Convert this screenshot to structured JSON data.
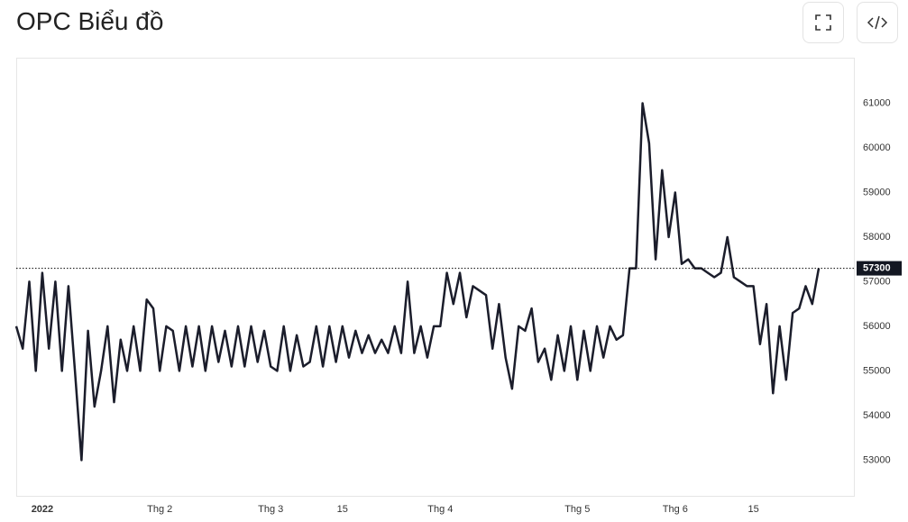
{
  "chart_data": {
    "type": "line",
    "title": "OPC Biểu đồ",
    "categories": [
      null,
      null,
      null,
      null,
      "2022",
      null,
      null,
      null,
      null,
      null,
      null,
      null,
      null,
      null,
      null,
      null,
      null,
      null,
      null,
      null,
      null,
      null,
      "Thg 2",
      null,
      null,
      null,
      null,
      null,
      null,
      null,
      null,
      null,
      null,
      null,
      null,
      null,
      null,
      null,
      null,
      "Thg 3",
      null,
      null,
      null,
      null,
      null,
      null,
      null,
      null,
      null,
      null,
      "15",
      null,
      null,
      null,
      null,
      null,
      null,
      null,
      null,
      null,
      null,
      null,
      null,
      null,
      null,
      "Thg 4",
      null,
      null,
      null,
      null,
      null,
      null,
      null,
      null,
      null,
      null,
      null,
      null,
      null,
      null,
      null,
      null,
      null,
      null,
      null,
      null,
      "Thg 5",
      null,
      null,
      null,
      null,
      null,
      null,
      null,
      null,
      null,
      null,
      null,
      null,
      null,
      null,
      "Thg 6",
      null,
      null,
      null,
      null,
      null,
      null,
      null,
      null,
      null,
      null,
      null,
      "15",
      null,
      null,
      null,
      null,
      null,
      null,
      null,
      null,
      null,
      null
    ],
    "series": [
      {
        "color": "#1b1d2b",
        "values": [
          56000,
          55500,
          57000,
          55000,
          57200,
          55500,
          57000,
          55000,
          56900,
          55000,
          53000,
          55900,
          54200,
          55000,
          56000,
          54300,
          55700,
          55000,
          56000,
          55000,
          56600,
          56400,
          55000,
          56000,
          55900,
          55000,
          56000,
          55100,
          56000,
          55000,
          56000,
          55200,
          55900,
          55100,
          56000,
          55100,
          56000,
          55200,
          55900,
          55100,
          55000,
          56000,
          55000,
          55800,
          55100,
          55200,
          56000,
          55100,
          56000,
          55200,
          56000,
          55300,
          55900,
          55400,
          55800,
          55400,
          55700,
          55400,
          56000,
          55400,
          57000,
          55400,
          56000,
          55300,
          56000,
          56000,
          57200,
          56500,
          57200,
          56200,
          56900,
          56800,
          56700,
          55500,
          56500,
          55300,
          54600,
          56000,
          55900,
          56400,
          55200,
          55500,
          54800,
          55800,
          55000,
          56000,
          54800,
          55900,
          55000,
          56000,
          55300,
          56000,
          55700,
          55800,
          57300,
          57300,
          61000,
          60100,
          57500,
          59500,
          58000,
          59000,
          57400,
          57500,
          57300,
          57300,
          57200,
          57100,
          57200,
          58000,
          57100,
          57000,
          56900,
          56900,
          55600,
          56500,
          54500,
          56000,
          54800,
          56300,
          56400,
          56900,
          56500,
          57300
        ]
      }
    ],
    "ylim": [
      52200,
      62000
    ],
    "yticks": [
      53000,
      54000,
      55000,
      56000,
      57000,
      58000,
      59000,
      60000,
      61000
    ],
    "grid": false
  }
}
